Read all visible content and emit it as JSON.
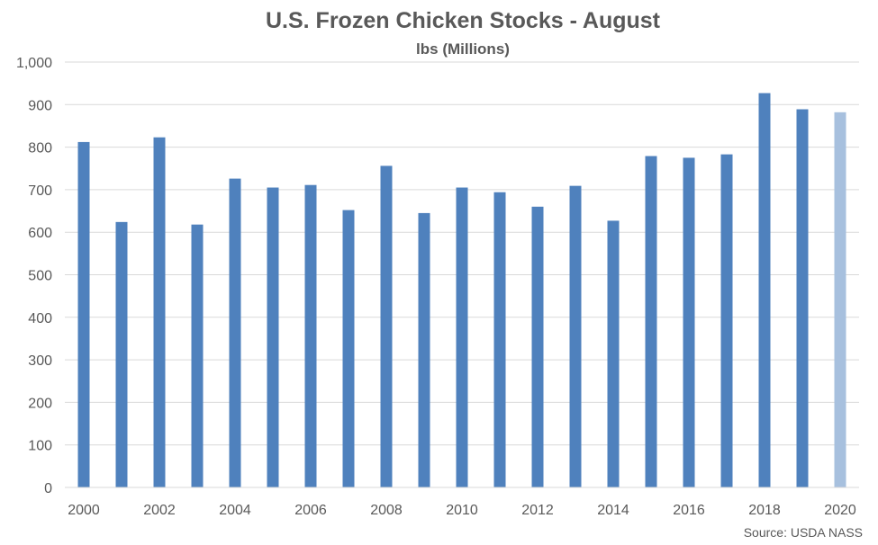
{
  "chart_data": {
    "type": "bar",
    "title": "U.S. Frozen Chicken Stocks - August",
    "subtitle": "lbs (Millions)",
    "source": "Source: USDA NASS",
    "categories": [
      "2000",
      "2001",
      "2002",
      "2003",
      "2004",
      "2005",
      "2006",
      "2007",
      "2008",
      "2009",
      "2010",
      "2011",
      "2012",
      "2013",
      "2014",
      "2015",
      "2016",
      "2017",
      "2018",
      "2019",
      "2020"
    ],
    "x_tick_labels": [
      "2000",
      "",
      "2002",
      "",
      "2004",
      "",
      "2006",
      "",
      "2008",
      "",
      "2010",
      "",
      "2012",
      "",
      "2014",
      "",
      "2016",
      "",
      "2018",
      "",
      "2020"
    ],
    "values": [
      812,
      624,
      823,
      618,
      726,
      705,
      711,
      652,
      756,
      645,
      705,
      694,
      660,
      709,
      627,
      779,
      775,
      783,
      927,
      889,
      882
    ],
    "ylim": [
      0,
      1000
    ],
    "y_ticks": [
      0,
      100,
      200,
      300,
      400,
      500,
      600,
      700,
      800,
      900,
      1000
    ],
    "y_tick_labels": [
      "0",
      "100",
      "200",
      "300",
      "400",
      "500",
      "600",
      "700",
      "800",
      "900",
      "1,000"
    ],
    "grid": true,
    "legend": "none",
    "colors": {
      "bar": "#4f81bd",
      "bar_highlight": "#a7c0de",
      "grid": "#d9d9d9",
      "text": "#595959",
      "axis": "#d9d9d9"
    },
    "highlight_index": 20
  }
}
